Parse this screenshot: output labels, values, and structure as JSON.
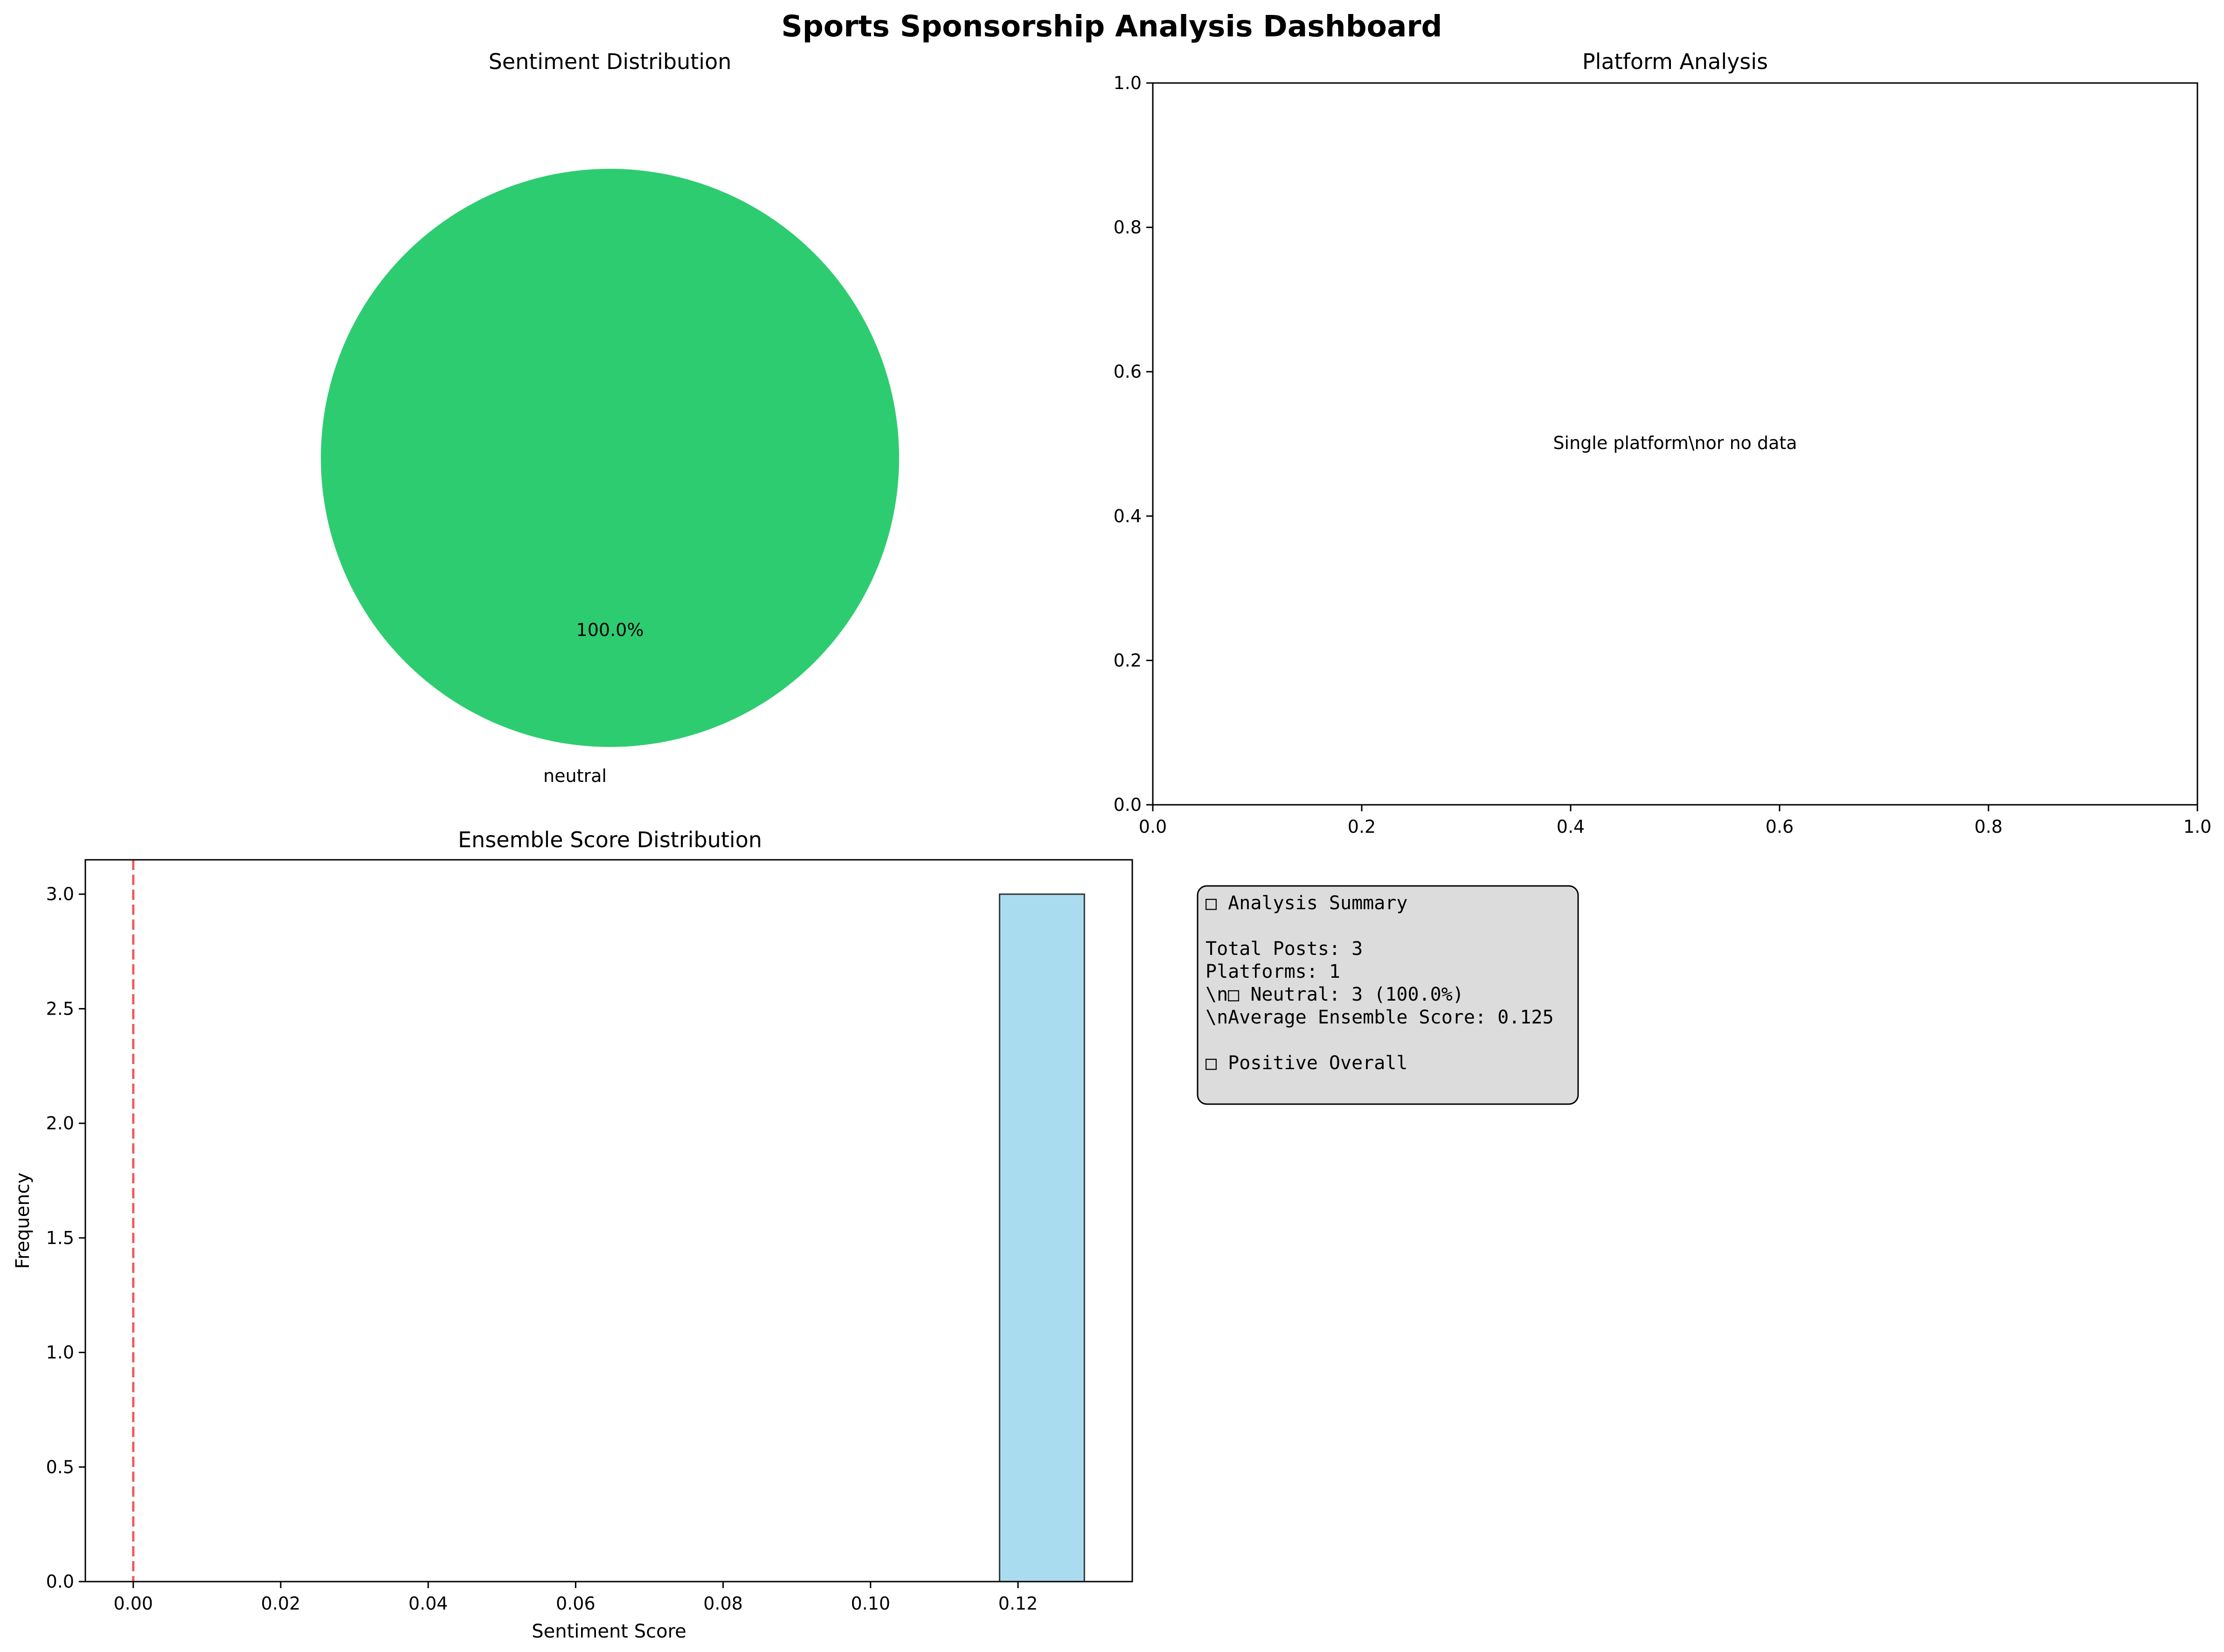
{
  "page_title": "Sports Sponsorship Analysis Dashboard",
  "chart_data": [
    {
      "type": "pie",
      "title": "Sentiment Distribution",
      "slices": [
        {
          "label": "neutral",
          "value": 100.0,
          "pct_label": "100.0%",
          "color": "#2ecc71"
        }
      ]
    },
    {
      "type": "scatter",
      "title": "Platform Analysis",
      "xlim": [
        0.0,
        1.0
      ],
      "ylim": [
        0.0,
        1.0
      ],
      "xticks": [
        "0.0",
        "0.2",
        "0.4",
        "0.6",
        "0.8",
        "1.0"
      ],
      "yticks": [
        "0.0",
        "0.2",
        "0.4",
        "0.6",
        "0.8",
        "1.0"
      ],
      "annotation": "Single platform\\nor no data"
    },
    {
      "type": "bar",
      "title": "Ensemble Score Distribution",
      "xlabel": "Sentiment Score",
      "ylabel": "Frequency",
      "xlim": [
        -0.0065,
        0.1355
      ],
      "ylim": [
        0,
        3.15
      ],
      "xticks": [
        "0.00",
        "0.02",
        "0.04",
        "0.06",
        "0.08",
        "0.10",
        "0.12"
      ],
      "yticks": [
        "0.0",
        "0.5",
        "1.0",
        "1.5",
        "2.0",
        "2.5",
        "3.0"
      ],
      "bins": [
        {
          "x0": 0.1175,
          "x1": 0.129,
          "count": 3
        }
      ],
      "bar_color": "#a9dcee",
      "reference_line": {
        "x": 0.0,
        "color": "#ee3333"
      }
    }
  ],
  "summary": {
    "title": "□ Analysis Summary",
    "lines": [
      "Total Posts: 3",
      "Platforms: 1",
      "\\n□ Neutral: 3 (100.0%)",
      "\\nAverage Ensemble Score: 0.125"
    ],
    "verdict": "□ Positive Overall"
  }
}
